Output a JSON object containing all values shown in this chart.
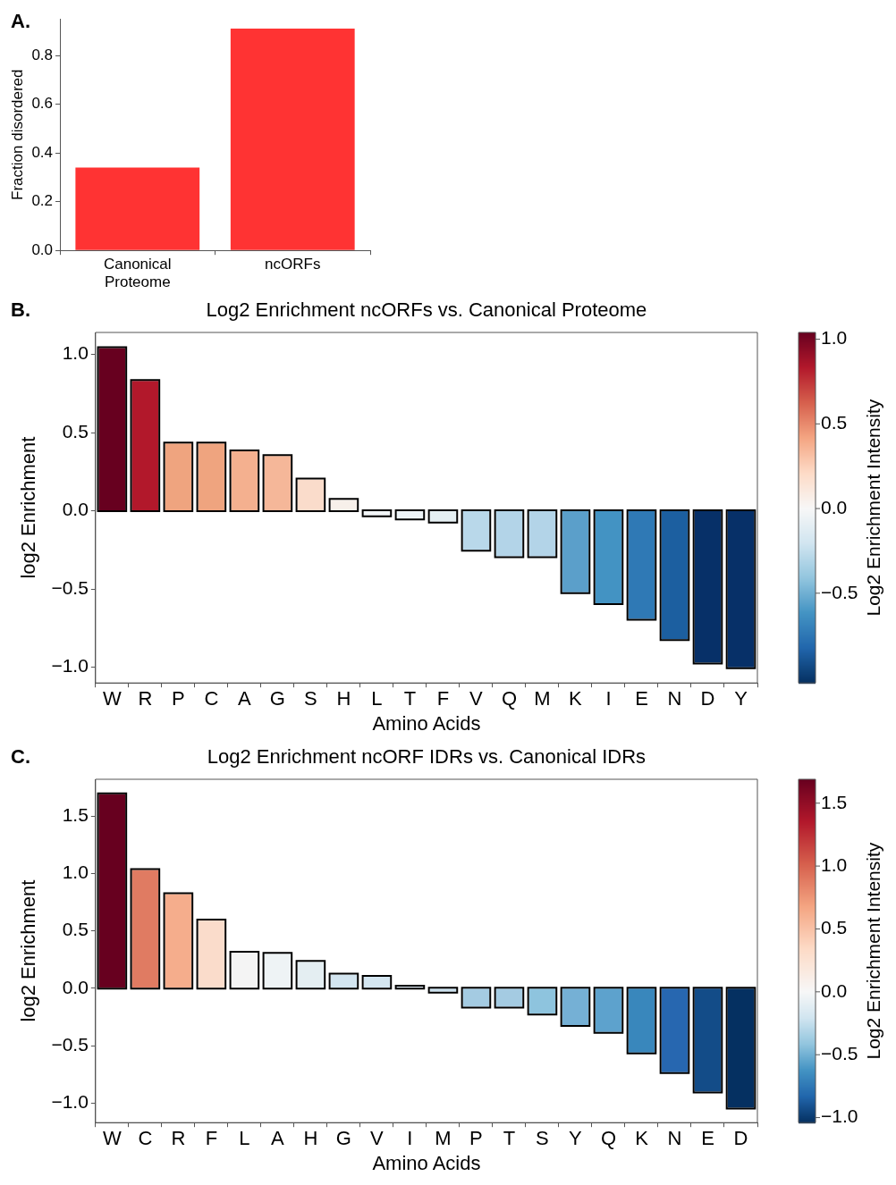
{
  "chart_data": [
    {
      "type": "bar",
      "annotations": [
        "A."
      ],
      "ylabel": "Fraction disordered",
      "categories": [
        "Canonical\nProteome",
        "ncORFs"
      ],
      "values": [
        0.34,
        0.91
      ],
      "color": "#ff3333",
      "ylim": [
        0,
        0.95
      ],
      "yticks": [
        {
          "value": 0,
          "label": "0.0"
        },
        {
          "value": 0.2,
          "label": "0.2"
        },
        {
          "value": 0.4,
          "label": "0.4"
        },
        {
          "value": 0.6,
          "label": "0.6"
        },
        {
          "value": 0.8,
          "label": "0.8"
        }
      ]
    },
    {
      "type": "bar",
      "annotations": [
        "B."
      ],
      "title": "Log2 Enrichment ncORFs vs. Canonical Proteome",
      "xlabel": "Amino Acids",
      "ylabel": "log2 Enrichment",
      "clabel": "Log2 Enrichment Intensity",
      "categories": [
        "W",
        "R",
        "P",
        "C",
        "A",
        "G",
        "S",
        "H",
        "L",
        "T",
        "F",
        "V",
        "Q",
        "M",
        "K",
        "I",
        "E",
        "N",
        "D",
        "Y"
      ],
      "values": [
        1.04,
        0.83,
        0.43,
        0.43,
        0.38,
        0.35,
        0.2,
        0.07,
        -0.03,
        -0.05,
        -0.07,
        -0.25,
        -0.29,
        -0.29,
        -0.52,
        -0.59,
        -0.69,
        -0.82,
        -0.97,
        -1.0
      ],
      "colors": [
        "#67001f",
        "#b2182b",
        "#efa47f",
        "#efa47f",
        "#f4b08f",
        "#f5b799",
        "#fadccb",
        "#f7f0ea",
        "#f2f5f7",
        "#edf3f7",
        "#e5eff2",
        "#b9d8ea",
        "#b3d4e8",
        "#b3d4e8",
        "#5b9fca",
        "#4393c3",
        "#2f79b5",
        "#1c5fa0",
        "#073068",
        "#073068"
      ],
      "ylim": [
        -1.1,
        1.14
      ],
      "yticks": [
        {
          "value": -1,
          "label": "−1.0"
        },
        {
          "value": -0.5,
          "label": "−0.5"
        },
        {
          "value": 0,
          "label": "0.0"
        },
        {
          "value": 0.5,
          "label": "0.5"
        },
        {
          "value": 1,
          "label": "1.0"
        }
      ],
      "clim": [
        -1.03,
        1.04
      ],
      "cticks": [
        {
          "value": -0.5,
          "label": "−0.5"
        },
        {
          "value": 0,
          "label": "0.0"
        },
        {
          "value": 0.5,
          "label": "0.5"
        },
        {
          "value": 1,
          "label": "1.0"
        }
      ]
    },
    {
      "type": "bar",
      "annotations": [
        "C."
      ],
      "title": "Log2 Enrichment ncORF IDRs vs. Canonical IDRs",
      "xlabel": "Amino Acids",
      "ylabel": "log2 Enrichment",
      "clabel": "Log2 Enrichment Intensity",
      "categories": [
        "W",
        "C",
        "R",
        "F",
        "L",
        "A",
        "H",
        "G",
        "V",
        "I",
        "M",
        "P",
        "T",
        "S",
        "Y",
        "Q",
        "K",
        "N",
        "E",
        "D"
      ],
      "values": [
        1.69,
        1.03,
        0.82,
        0.59,
        0.31,
        0.3,
        0.23,
        0.12,
        0.1,
        0.015,
        -0.03,
        -0.16,
        -0.16,
        -0.22,
        -0.32,
        -0.38,
        -0.56,
        -0.73,
        -0.9,
        -1.04
      ],
      "colors": [
        "#67001f",
        "#e07b62",
        "#f5ad8c",
        "#fadccb",
        "#f4f4f4",
        "#eef3f5",
        "#e4eef2",
        "#d3e5f0",
        "#d4e6f1",
        "#dde9f2",
        "#cbe0ee",
        "#a4cbe2",
        "#a4cbe2",
        "#8ec4de",
        "#75b0d5",
        "#5da2cd",
        "#3987bc",
        "#2767b0",
        "#134c88",
        "#053061"
      ],
      "ylim": [
        -1.17,
        1.82
      ],
      "yticks": [
        {
          "value": -1,
          "label": "−1.0"
        },
        {
          "value": -0.5,
          "label": "−0.5"
        },
        {
          "value": 0,
          "label": "0.0"
        },
        {
          "value": 0.5,
          "label": "0.5"
        },
        {
          "value": 1,
          "label": "1.0"
        },
        {
          "value": 1.5,
          "label": "1.5"
        }
      ],
      "clim": [
        -1.04,
        1.69
      ],
      "cticks": [
        {
          "value": -1,
          "label": "−1.0"
        },
        {
          "value": -0.5,
          "label": "−0.5"
        },
        {
          "value": 0,
          "label": "0.0"
        },
        {
          "value": 0.5,
          "label": "0.5"
        },
        {
          "value": 1,
          "label": "1.0"
        },
        {
          "value": 1.5,
          "label": "1.5"
        }
      ]
    }
  ]
}
